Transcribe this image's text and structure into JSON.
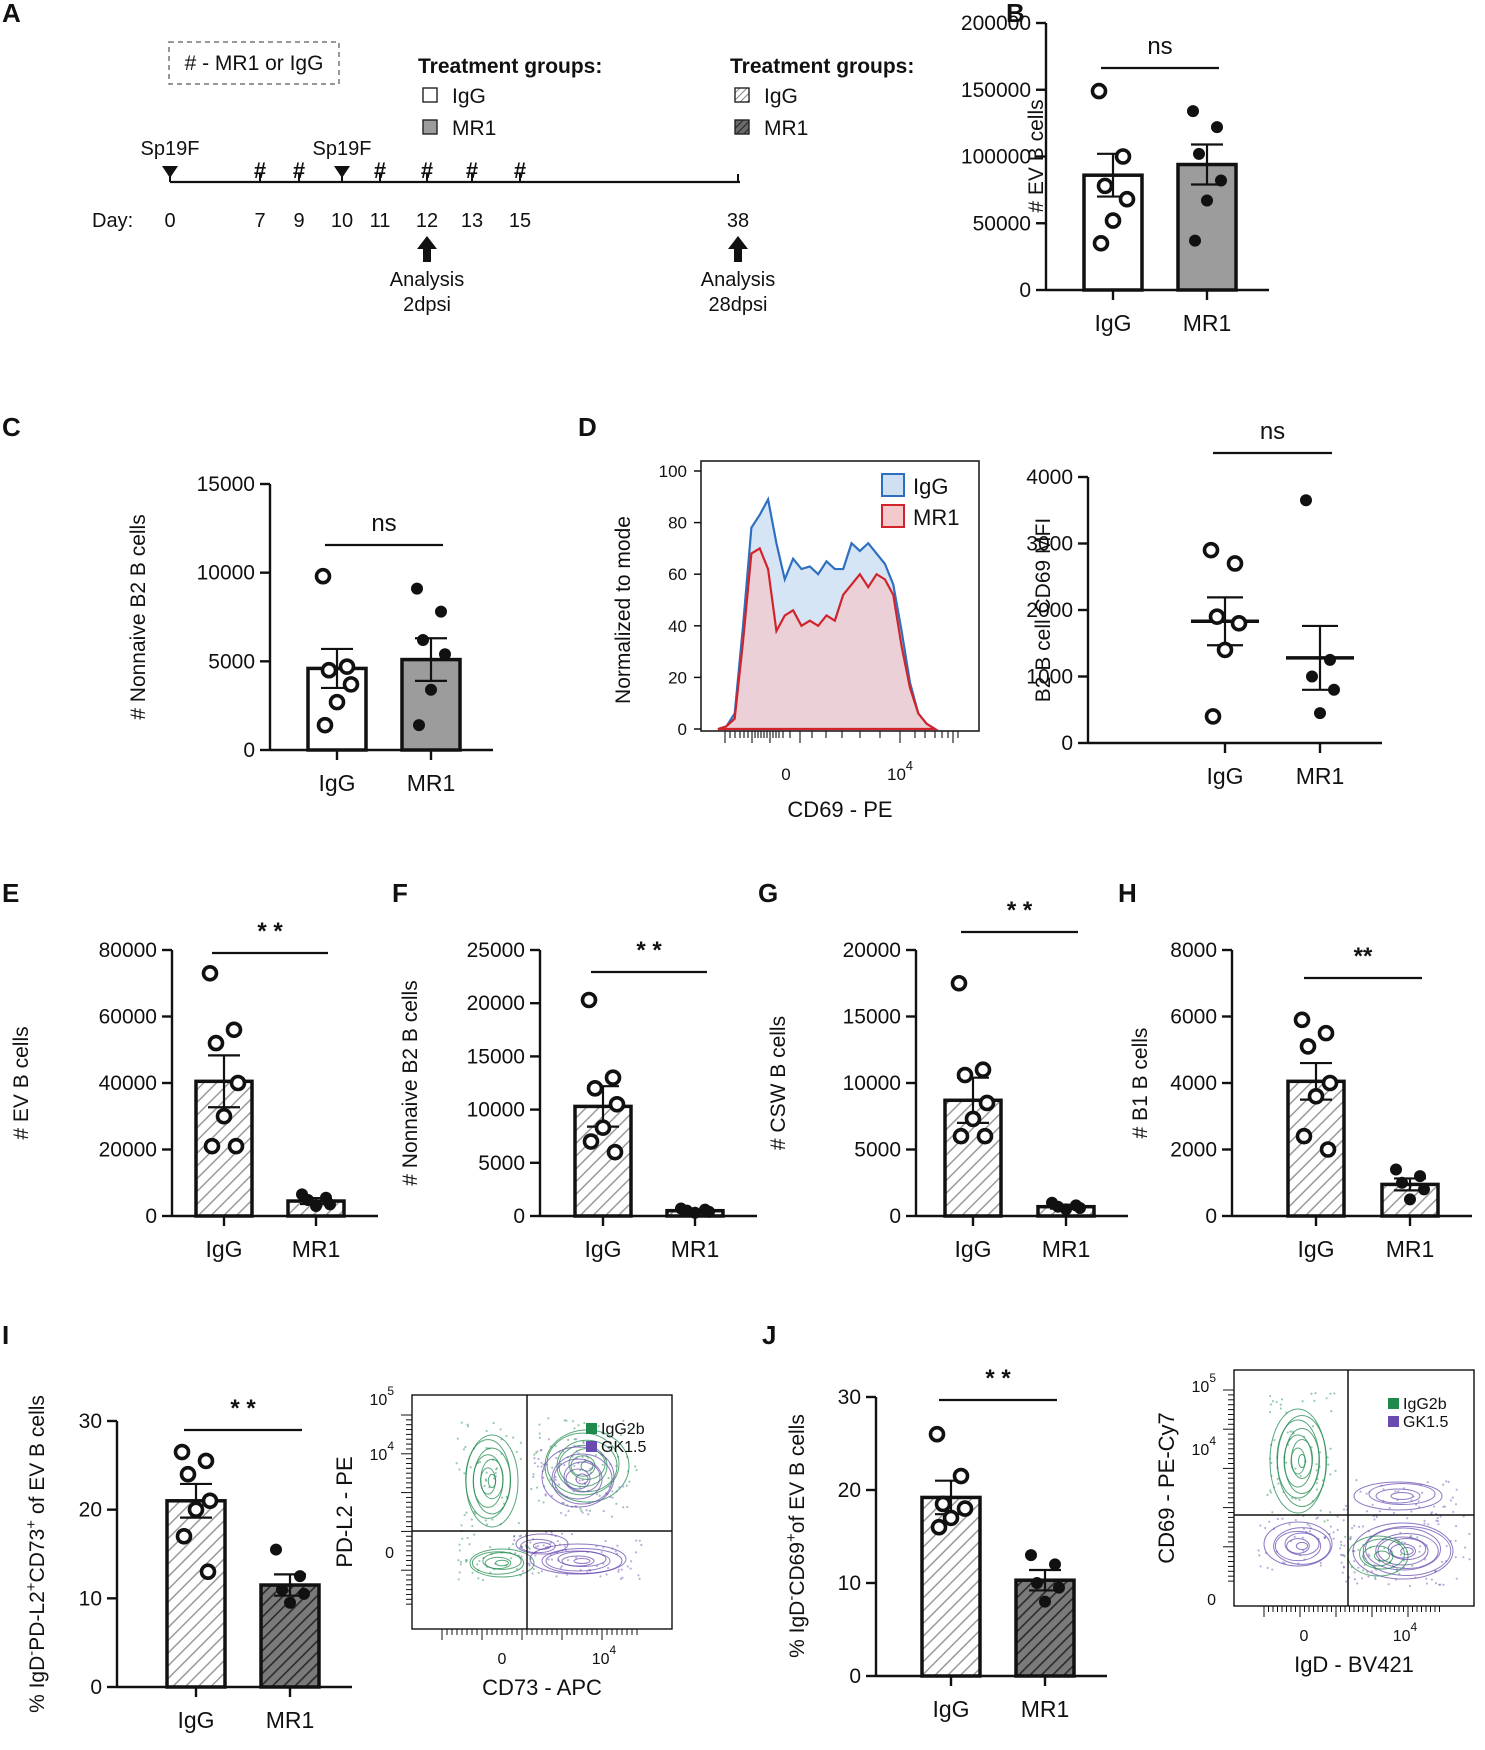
{
  "colors": {
    "axis": "#111111",
    "ev_gray": "#9c9c9c",
    "igg_fill": "#cfe0f3",
    "igg_line": "#2f6fc0",
    "mr1_fill": "#f4c9cb",
    "mr1_line": "#d2232a",
    "overlap": "#cbbcc8",
    "green": "#1f8a4c",
    "purple": "#6a4bb0"
  },
  "panelA": {
    "label": "A",
    "legend_box": "# - MR1 or IgG",
    "groups1_title": "Treatment groups:",
    "groups1": [
      "IgG",
      "MR1"
    ],
    "groups2_title": "Treatment groups:",
    "groups2": [
      "IgG",
      "MR1"
    ],
    "day_label": "Day:",
    "infection_label": "Sp19F",
    "infection_days": [
      0,
      10
    ],
    "treatment_days": [
      7,
      9,
      11,
      12,
      13,
      15
    ],
    "days": [
      "0",
      "7",
      "9",
      "10",
      "11",
      "12",
      "13",
      "15",
      "38"
    ],
    "analysis1": [
      "Analysis",
      "2dpsi"
    ],
    "analysis2": [
      "Analysis",
      "28dpsi"
    ]
  },
  "chart_data": [
    {
      "id": "B",
      "type": "bar",
      "title": "",
      "ylabel": "# EV B cells",
      "categories": [
        "IgG",
        "MR1"
      ],
      "values": [
        86000,
        94000
      ],
      "sem": [
        16000,
        15000
      ],
      "ylim": [
        0,
        200000
      ],
      "yticks": [
        "0",
        "50000",
        "100000",
        "150000",
        "200000"
      ],
      "significance": "ns",
      "points": [
        [
          149000,
          100000,
          78000,
          68000,
          52000,
          35000
        ],
        [
          134000,
          122000,
          102000,
          82000,
          67000,
          37000
        ]
      ],
      "style": [
        "white",
        "gray"
      ]
    },
    {
      "id": "C",
      "type": "bar",
      "ylabel": "# Nonnaive B2 B cells",
      "categories": [
        "IgG",
        "MR1"
      ],
      "values": [
        4600,
        5100
      ],
      "sem": [
        1100,
        1200
      ],
      "ylim": [
        0,
        15000
      ],
      "yticks": [
        "0",
        "5000",
        "10000",
        "15000"
      ],
      "significance": "ns",
      "points": [
        [
          9800,
          4700,
          4500,
          3700,
          2700,
          1400
        ],
        [
          9100,
          7800,
          6200,
          5400,
          3400,
          1400
        ]
      ],
      "style": [
        "white",
        "gray"
      ]
    },
    {
      "id": "D",
      "type": "line",
      "xlabel": "CD69 - PE",
      "ylabel": "Normalized to mode",
      "ylim": [
        0,
        100
      ],
      "yticks": [
        "0",
        "20",
        "40",
        "60",
        "80",
        "100"
      ],
      "xticks": [
        "0",
        "10^4"
      ],
      "series": [
        {
          "name": "IgG",
          "values": [
            0,
            1,
            6,
            40,
            78,
            83,
            89,
            72,
            58,
            66,
            62,
            63,
            60,
            65,
            62,
            62,
            72,
            69,
            72,
            68,
            64,
            56,
            38,
            18,
            6,
            2,
            0
          ]
        },
        {
          "name": "MR1",
          "values": [
            0,
            1,
            4,
            34,
            68,
            70,
            62,
            38,
            44,
            46,
            40,
            42,
            40,
            44,
            42,
            52,
            56,
            60,
            55,
            60,
            58,
            52,
            32,
            16,
            6,
            2,
            0
          ]
        }
      ]
    },
    {
      "id": "D2",
      "type": "scatter",
      "ylabel": "B2 B cell CD69 MFI",
      "categories": [
        "IgG",
        "MR1"
      ],
      "means": [
        1830,
        1280
      ],
      "sem": [
        360,
        480
      ],
      "ylim": [
        0,
        4000
      ],
      "yticks": [
        "0",
        "1000",
        "2000",
        "3000",
        "4000"
      ],
      "significance": "ns",
      "points": [
        [
          2900,
          2700,
          1900,
          1800,
          1400,
          400
        ],
        [
          3650,
          1250,
          1000,
          800,
          450
        ]
      ]
    },
    {
      "id": "E",
      "type": "bar",
      "ylabel": "# EV B cells",
      "categories": [
        "IgG",
        "MR1"
      ],
      "values": [
        40500,
        4500
      ],
      "sem": [
        7800,
        900
      ],
      "ylim": [
        0,
        80000
      ],
      "yticks": [
        "0",
        "20000",
        "40000",
        "60000",
        "80000"
      ],
      "significance": "* *",
      "points": [
        [
          73000,
          56000,
          52000,
          40000,
          30000,
          21000,
          21000
        ],
        [
          6500,
          5500,
          4800,
          3500,
          3000
        ]
      ],
      "style": [
        "hatch",
        "hatch"
      ]
    },
    {
      "id": "F",
      "type": "bar",
      "ylabel": "# Nonnaive B2 B cells",
      "categories": [
        "IgG",
        "MR1"
      ],
      "values": [
        10300,
        500
      ],
      "sem": [
        1900,
        100
      ],
      "ylim": [
        0,
        25000
      ],
      "yticks": [
        "0",
        "5000",
        "10000",
        "15000",
        "20000",
        "25000"
      ],
      "significance": "* *",
      "points": [
        [
          20300,
          13000,
          12000,
          10500,
          8300,
          7000,
          6000
        ],
        [
          700,
          600,
          500,
          400,
          300
        ]
      ],
      "style": [
        "hatch",
        "hatch"
      ]
    },
    {
      "id": "G",
      "type": "bar",
      "ylabel": "# CSW B cells",
      "categories": [
        "IgG",
        "MR1"
      ],
      "values": [
        8700,
        700
      ],
      "sem": [
        1700,
        150
      ],
      "ylim": [
        0,
        20000
      ],
      "yticks": [
        "0",
        "5000",
        "10000",
        "15000",
        "20000"
      ],
      "significance": "* *",
      "points": [
        [
          17500,
          11000,
          10600,
          8500,
          7300,
          6000,
          6000
        ],
        [
          1000,
          800,
          700,
          600,
          500
        ]
      ],
      "style": [
        "hatch",
        "hatch"
      ]
    },
    {
      "id": "H",
      "type": "bar",
      "ylabel": "# B1 B cells",
      "categories": [
        "IgG",
        "MR1"
      ],
      "values": [
        4050,
        950
      ],
      "sem": [
        550,
        180
      ],
      "ylim": [
        0,
        8000
      ],
      "yticks": [
        "0",
        "2000",
        "4000",
        "6000",
        "8000"
      ],
      "significance": "**",
      "points": [
        [
          5900,
          5500,
          5100,
          4000,
          3600,
          2400,
          2000
        ],
        [
          1400,
          1200,
          1000,
          800,
          500
        ]
      ],
      "style": [
        "hatch",
        "hatch"
      ]
    },
    {
      "id": "I",
      "type": "bar",
      "ylabel": "% IgD-PD-L2+CD73+ of EV B cells",
      "categories": [
        "IgG",
        "MR1"
      ],
      "values": [
        21.0,
        11.5
      ],
      "sem": [
        1.9,
        1.2
      ],
      "ylim": [
        0,
        30
      ],
      "yticks": [
        "0",
        "10",
        "20",
        "30"
      ],
      "significance": "* *",
      "points": [
        [
          26.5,
          25.5,
          24,
          21,
          20,
          17,
          13
        ],
        [
          15.5,
          12.5,
          11,
          10.5,
          9.5
        ]
      ],
      "style": [
        "hatch",
        "dark"
      ]
    },
    {
      "id": "J",
      "type": "bar",
      "ylabel": "% IgD-CD69+ of EV B cells",
      "categories": [
        "IgG",
        "MR1"
      ],
      "values": [
        19.2,
        10.3
      ],
      "sem": [
        1.8,
        1.1
      ],
      "ylim": [
        0,
        30
      ],
      "yticks": [
        "0",
        "10",
        "20",
        "30"
      ],
      "significance": "* *",
      "points": [
        [
          26,
          21.5,
          18.5,
          18,
          17,
          16
        ],
        [
          13,
          12,
          10,
          9.5,
          8
        ]
      ],
      "style": [
        "hatch",
        "dark"
      ]
    }
  ],
  "contourI": {
    "xlabel": "CD73 - APC",
    "ylabel": "PD-L2 - PE",
    "legend": [
      "IgG2b",
      "GK1.5"
    ],
    "xticks": [
      "0",
      "10^4"
    ],
    "yticks": [
      "0",
      "10^4",
      "10^5"
    ]
  },
  "contourJ": {
    "xlabel": "IgD - BV421",
    "ylabel": "CD69 - PE-Cy7",
    "legend": [
      "IgG2b",
      "GK1.5"
    ],
    "xticks": [
      "0",
      "10^4"
    ],
    "yticks": [
      "0",
      "10^4",
      "10^5"
    ]
  },
  "labels": {
    "B": "B",
    "C": "C",
    "D": "D",
    "E": "E",
    "F": "F",
    "G": "G",
    "H": "H",
    "I": "I",
    "J": "J"
  }
}
